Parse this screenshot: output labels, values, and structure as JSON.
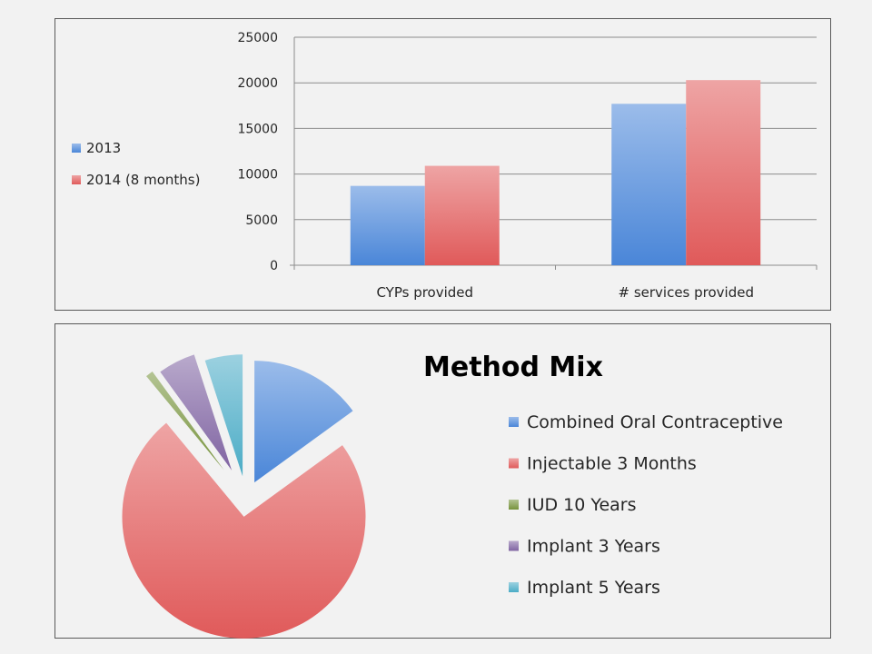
{
  "chart_data": [
    {
      "type": "bar",
      "title": "",
      "xlabel": "",
      "ylabel": "",
      "categories": [
        "CYPs provided",
        "# services provided"
      ],
      "series": [
        {
          "name": "2013",
          "values": [
            8700,
            17700
          ],
          "color": "#4a86d8"
        },
        {
          "name": "2014 (8 months)",
          "values": [
            10900,
            20300
          ],
          "color": "#e05a5a"
        }
      ],
      "ylim": [
        0,
        25000
      ],
      "yticks": [
        "0",
        "5000",
        "10000",
        "15000",
        "20000",
        "25000"
      ],
      "grid": true,
      "legend_position": "left"
    },
    {
      "type": "pie",
      "title": "Method Mix",
      "slices": [
        {
          "name": "Combined Oral Contraceptive",
          "value": 15,
          "color": "#4a86d8"
        },
        {
          "name": "Injectable 3 Months",
          "value": 74,
          "color": "#e05a5a"
        },
        {
          "name": "IUD 10 Years",
          "value": 1,
          "color": "#77933c"
        },
        {
          "name": "Implant 3 Years",
          "value": 5,
          "color": "#8064a2"
        },
        {
          "name": "Implant 5 Years",
          "value": 5,
          "color": "#4bacc6"
        }
      ],
      "exploded": true,
      "legend_position": "right"
    }
  ]
}
